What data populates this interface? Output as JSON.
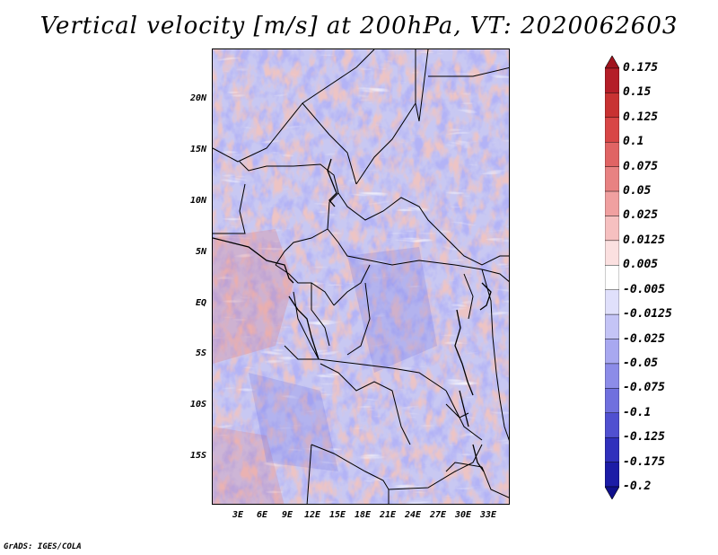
{
  "title": "Vertical velocity [m/s] at 200hPa, VT: 2020062603",
  "map": {
    "variable": "Vertical velocity",
    "units": "m/s",
    "level": "200hPa",
    "valid_time": "2020062603",
    "lat_labels": [
      "20N",
      "15N",
      "10N",
      "5N",
      "EQ",
      "5S",
      "10S",
      "15S"
    ],
    "lon_labels": [
      "3E",
      "6E",
      "9E",
      "12E",
      "15E",
      "18E",
      "21E",
      "24E",
      "27E",
      "30E",
      "33E"
    ]
  },
  "colorbar": {
    "labels": [
      "0.175",
      "0.15",
      "0.125",
      "0.1",
      "0.075",
      "0.05",
      "0.025",
      "0.0125",
      "0.005",
      "-0.005",
      "-0.0125",
      "-0.025",
      "-0.05",
      "-0.075",
      "-0.1",
      "-0.125",
      "-0.175",
      "-0.2"
    ],
    "colors": [
      "#a0141e",
      "#b41e28",
      "#c83232",
      "#d84646",
      "#e06464",
      "#e88282",
      "#f0a0a0",
      "#f6c0c0",
      "#fbe0e0",
      "#ffffff",
      "#e0e0fb",
      "#c4c4f6",
      "#a8a8f0",
      "#8c8ce8",
      "#7070de",
      "#5050d0",
      "#3030bc",
      "#1c1ca6",
      "#10108c"
    ]
  },
  "footer": "GrADS: IGES/COLA"
}
